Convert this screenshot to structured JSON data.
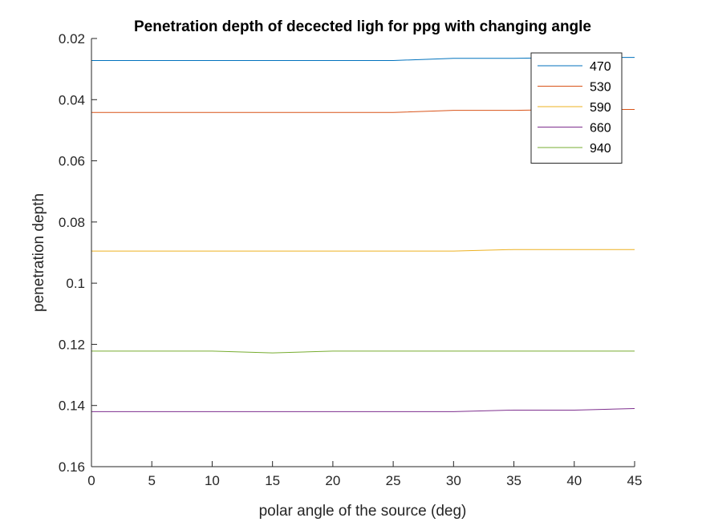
{
  "chart_data": {
    "type": "line",
    "title": "Penetration depth of decected ligh for ppg with changing angle",
    "xlabel": "polar angle of the source (deg)",
    "ylabel": "penetration depth",
    "xlim": [
      0,
      45
    ],
    "ylim": [
      0.02,
      0.16
    ],
    "y_reversed": true,
    "xticks": [
      0,
      5,
      10,
      15,
      20,
      25,
      30,
      35,
      40,
      45
    ],
    "xtick_labels": [
      "0",
      "5",
      "10",
      "15",
      "20",
      "25",
      "30",
      "35",
      "40",
      "45"
    ],
    "yticks": [
      0.02,
      0.04,
      0.06,
      0.08,
      0.1,
      0.12,
      0.14,
      0.16
    ],
    "ytick_labels": [
      "0.02",
      "0.04",
      "0.06",
      "0.08",
      "0.1",
      "0.12",
      "0.14",
      "0.16"
    ],
    "grid": false,
    "legend_position": "top-right",
    "x": [
      0,
      5,
      10,
      15,
      20,
      25,
      30,
      35,
      40,
      45
    ],
    "series": [
      {
        "name": "470",
        "color": "#0072BD",
        "values": [
          0.0272,
          0.0272,
          0.0272,
          0.0272,
          0.0272,
          0.0272,
          0.0265,
          0.0265,
          0.0262,
          0.0262
        ]
      },
      {
        "name": "530",
        "color": "#D95319",
        "values": [
          0.0442,
          0.0442,
          0.0442,
          0.0442,
          0.0442,
          0.0442,
          0.0435,
          0.0435,
          0.0432,
          0.0432
        ]
      },
      {
        "name": "590",
        "color": "#EDB120",
        "values": [
          0.0895,
          0.0895,
          0.0895,
          0.0895,
          0.0895,
          0.0895,
          0.0895,
          0.089,
          0.089,
          0.089
        ]
      },
      {
        "name": "660",
        "color": "#7E2F8E",
        "values": [
          0.142,
          0.142,
          0.142,
          0.142,
          0.142,
          0.142,
          0.142,
          0.1415,
          0.1415,
          0.141
        ]
      },
      {
        "name": "940",
        "color": "#77AC30",
        "values": [
          0.1222,
          0.1222,
          0.1222,
          0.1228,
          0.1222,
          0.1222,
          0.1222,
          0.1222,
          0.1222,
          0.1222
        ]
      }
    ]
  }
}
